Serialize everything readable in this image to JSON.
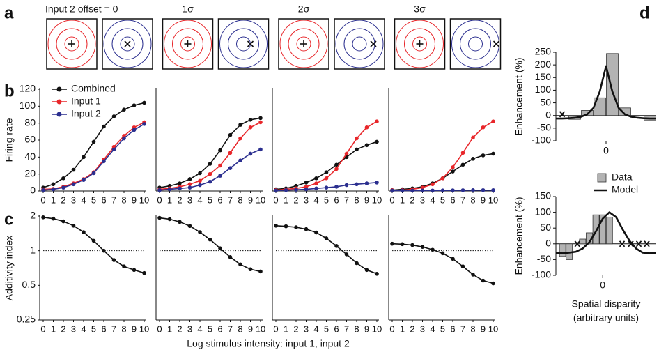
{
  "panel_labels": [
    "a",
    "b",
    "c",
    "d"
  ],
  "panel_a": {
    "titles": [
      "Input 2 offset = 0",
      "1σ",
      "2σ",
      "3σ"
    ]
  },
  "xlabel_bc": "Log stimulus intensity: input 1, input 2",
  "chart_data": [
    {
      "type": "line",
      "ylabel": "Firing rate",
      "legend": "upper left",
      "x": [
        0,
        1,
        2,
        3,
        4,
        5,
        6,
        7,
        8,
        9,
        10
      ],
      "xticks": [
        0,
        1,
        2,
        3,
        4,
        5,
        6,
        7,
        8,
        9,
        10
      ],
      "xlim": [
        0,
        10
      ],
      "ylim": [
        0,
        120
      ],
      "yticks": [
        0,
        20,
        40,
        60,
        80,
        100,
        120
      ],
      "series": [
        {
          "name": "Combined",
          "color": "#111111",
          "values": [
            4,
            8,
            15,
            25,
            40,
            58,
            76,
            88,
            96,
            101,
            104
          ]
        },
        {
          "name": "Input 1",
          "color": "#e8262a",
          "values": [
            2,
            2.5,
            5,
            9,
            14,
            22,
            37,
            52,
            65,
            75,
            81
          ]
        },
        {
          "name": "Input 2",
          "color": "#2b2f8f",
          "values": [
            1,
            2,
            4,
            8,
            13,
            21,
            35,
            49,
            62,
            72,
            79
          ]
        }
      ]
    },
    {
      "type": "line",
      "x": [
        0,
        1,
        2,
        3,
        4,
        5,
        6,
        7,
        8,
        9,
        10
      ],
      "xticks": [
        0,
        1,
        2,
        3,
        4,
        5,
        6,
        7,
        8,
        9,
        10
      ],
      "xlim": [
        0,
        10
      ],
      "ylim": [
        0,
        120
      ],
      "series": [
        {
          "color": "#111111",
          "values": [
            4,
            6,
            9,
            14,
            21,
            32,
            48,
            66,
            78,
            84,
            86
          ]
        },
        {
          "color": "#e8262a",
          "values": [
            2,
            3,
            5,
            8,
            12,
            20,
            30,
            45,
            62,
            75,
            81
          ]
        },
        {
          "color": "#2b2f8f",
          "values": [
            1,
            2,
            3,
            4,
            7,
            11,
            18,
            27,
            36,
            44,
            49
          ]
        }
      ]
    },
    {
      "type": "line",
      "x": [
        0,
        1,
        2,
        3,
        4,
        5,
        6,
        7,
        8,
        9,
        10
      ],
      "xticks": [
        0,
        1,
        2,
        3,
        4,
        5,
        6,
        7,
        8,
        9,
        10
      ],
      "xlim": [
        0,
        10
      ],
      "ylim": [
        0,
        120
      ],
      "series": [
        {
          "color": "#111111",
          "values": [
            2,
            3,
            6,
            10,
            15,
            22,
            31,
            40,
            49,
            54,
            58
          ]
        },
        {
          "color": "#e8262a",
          "values": [
            1,
            2,
            3,
            5,
            9,
            15,
            26,
            44,
            62,
            75,
            82
          ]
        },
        {
          "color": "#2b2f8f",
          "values": [
            0.5,
            1,
            1.5,
            2,
            3,
            4,
            5,
            7,
            8,
            9,
            10
          ]
        }
      ]
    },
    {
      "type": "line",
      "x": [
        0,
        1,
        2,
        3,
        4,
        5,
        6,
        7,
        8,
        9,
        10
      ],
      "xticks": [
        0,
        1,
        2,
        3,
        4,
        5,
        6,
        7,
        8,
        9,
        10
      ],
      "xlim": [
        0,
        10
      ],
      "ylim": [
        0,
        120
      ],
      "series": [
        {
          "color": "#111111",
          "values": [
            1,
            2,
            3,
            5,
            9,
            15,
            23,
            31,
            38,
            42,
            44
          ]
        },
        {
          "color": "#e8262a",
          "values": [
            1,
            1,
            2,
            4,
            8,
            15,
            28,
            45,
            63,
            75,
            82
          ]
        },
        {
          "color": "#2b2f8f",
          "values": [
            0.5,
            0.5,
            0.5,
            0.6,
            0.6,
            0.7,
            0.8,
            0.9,
            1,
            1,
            1
          ]
        }
      ]
    },
    {
      "type": "line",
      "log_y": true,
      "ylabel": "Additivity index",
      "refline": 1,
      "x": [
        0,
        1,
        2,
        3,
        4,
        5,
        6,
        7,
        8,
        9,
        10
      ],
      "xticks": [
        0,
        1,
        2,
        3,
        4,
        5,
        6,
        7,
        8,
        9,
        10
      ],
      "xlim": [
        0,
        10
      ],
      "ylim": [
        0.25,
        2
      ],
      "yticks": [
        0.25,
        0.5,
        1,
        2
      ],
      "series": [
        {
          "color": "#111111",
          "values": [
            1.95,
            1.9,
            1.8,
            1.65,
            1.45,
            1.22,
            1.0,
            0.83,
            0.73,
            0.68,
            0.64
          ]
        }
      ]
    },
    {
      "type": "line",
      "log_y": true,
      "refline": 1,
      "x": [
        0,
        1,
        2,
        3,
        4,
        5,
        6,
        7,
        8,
        9,
        10
      ],
      "xticks": [
        0,
        1,
        2,
        3,
        4,
        5,
        6,
        7,
        8,
        9,
        10
      ],
      "xlim": [
        0,
        10
      ],
      "ylim": [
        0.25,
        2
      ],
      "series": [
        {
          "color": "#111111",
          "values": [
            1.93,
            1.88,
            1.78,
            1.64,
            1.45,
            1.25,
            1.05,
            0.88,
            0.76,
            0.69,
            0.66
          ]
        }
      ]
    },
    {
      "type": "line",
      "log_y": true,
      "refline": 1,
      "x": [
        0,
        1,
        2,
        3,
        4,
        5,
        6,
        7,
        8,
        9,
        10
      ],
      "xticks": [
        0,
        1,
        2,
        3,
        4,
        5,
        6,
        7,
        8,
        9,
        10
      ],
      "xlim": [
        0,
        10
      ],
      "ylim": [
        0.25,
        2
      ],
      "series": [
        {
          "color": "#111111",
          "values": [
            1.65,
            1.63,
            1.6,
            1.54,
            1.44,
            1.28,
            1.1,
            0.93,
            0.78,
            0.68,
            0.63
          ]
        }
      ]
    },
    {
      "type": "line",
      "log_y": true,
      "refline": 1,
      "x": [
        0,
        1,
        2,
        3,
        4,
        5,
        6,
        7,
        8,
        9,
        10
      ],
      "xticks": [
        0,
        1,
        2,
        3,
        4,
        5,
        6,
        7,
        8,
        9,
        10
      ],
      "xlim": [
        0,
        10
      ],
      "ylim": [
        0.25,
        2
      ],
      "series": [
        {
          "color": "#111111",
          "values": [
            1.15,
            1.14,
            1.12,
            1.08,
            1.02,
            0.95,
            0.85,
            0.73,
            0.62,
            0.55,
            0.52
          ]
        }
      ]
    },
    {
      "type": "combo",
      "ylabel": "Enhancement (%)",
      "xlim": [
        -4,
        4
      ],
      "xticks": [
        0
      ],
      "ylim": [
        -100,
        250
      ],
      "yticks": [
        -100,
        -50,
        0,
        50,
        100,
        150,
        200,
        250
      ],
      "series": [
        {
          "kind": "bar",
          "color": "#b3b3b3",
          "x": [
            -2.5,
            -1.5,
            -0.5,
            0.5,
            1.5,
            3.5
          ],
          "values": [
            -15,
            20,
            70,
            245,
            30,
            -20
          ]
        },
        {
          "kind": "line",
          "color": "#111111",
          "x": [
            -4,
            -3.5,
            -3,
            -2.5,
            -2,
            -1.5,
            -1,
            -0.5,
            0,
            0.5,
            1,
            1.5,
            2,
            2.5,
            3,
            3.5,
            4
          ],
          "values": [
            -12,
            -12,
            -11,
            -9,
            -5,
            5,
            30,
            95,
            195,
            95,
            30,
            5,
            -5,
            -9,
            -11,
            -12,
            -12
          ]
        },
        {
          "kind": "marker",
          "color": "#111111",
          "x": [
            -3.5
          ],
          "values": [
            5
          ]
        }
      ]
    },
    {
      "type": "combo",
      "ylabel": "Enhancement (%)",
      "xlabel": [
        "Spatial disparity",
        "(arbitrary units)"
      ],
      "legend": "upper center",
      "xlim": [
        -7,
        8
      ],
      "xticks": [
        0
      ],
      "ylim": [
        -100,
        150
      ],
      "yticks": [
        -100,
        -50,
        0,
        50,
        100,
        150
      ],
      "series": [
        {
          "name": "Data",
          "kind": "bar",
          "color": "#b3b3b3",
          "x": [
            -6,
            -5,
            -3,
            -2,
            -1,
            0,
            1
          ],
          "values": [
            -40,
            -50,
            15,
            35,
            92,
            92,
            85
          ]
        },
        {
          "name": "Model",
          "kind": "line",
          "color": "#111111",
          "x": [
            -7,
            -6,
            -5,
            -4,
            -3,
            -2,
            -1,
            0,
            1,
            2,
            3,
            4,
            5,
            6,
            7,
            8
          ],
          "values": [
            -30,
            -30,
            -28,
            -25,
            -15,
            5,
            40,
            80,
            100,
            85,
            45,
            10,
            -15,
            -28,
            -30,
            -30
          ]
        },
        {
          "kind": "marker",
          "color": "#111111",
          "x": [
            -3.8,
            2.9,
            4.2,
            5.4,
            6.6
          ],
          "values": [
            0,
            0,
            0,
            0,
            0
          ]
        }
      ]
    }
  ]
}
